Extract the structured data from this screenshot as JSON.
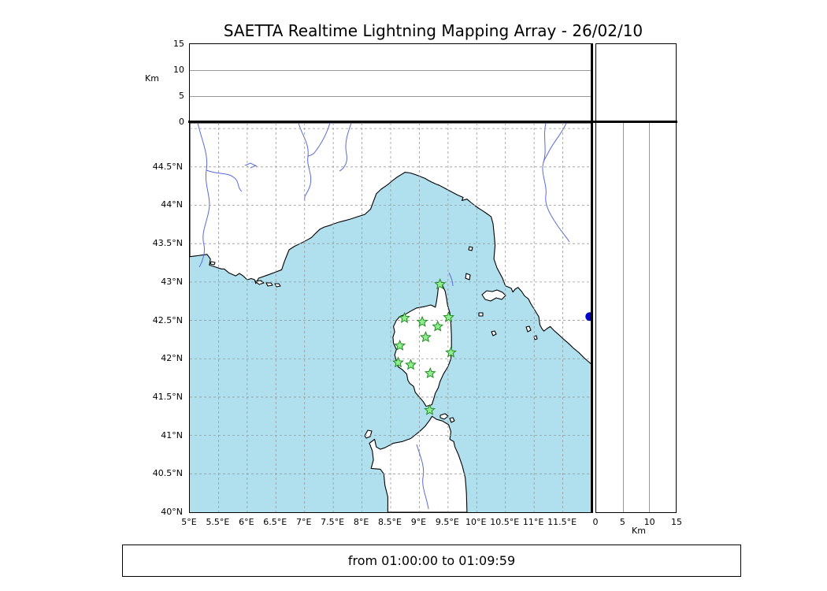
{
  "title": "SAETTA Realtime Lightning Mapping Array - 26/02/10",
  "footer": {
    "text": "from 01:00:00 to 01:09:59"
  },
  "panels": {
    "altitude_top": {
      "axis_label": "Km",
      "tick_labels": [
        "15",
        "10",
        "5",
        "0"
      ],
      "range": [
        0,
        15
      ],
      "gridlines": [
        5,
        10
      ]
    },
    "altitude_right": {
      "axis_label": "Km",
      "tick_labels": [
        "0",
        "5",
        "10",
        "15"
      ],
      "range": [
        0,
        15
      ],
      "gridlines": [
        5,
        10
      ]
    }
  },
  "map": {
    "lon_tick_labels": [
      "5°E",
      "5.5°E",
      "6°E",
      "6.5°E",
      "7°E",
      "7.5°E",
      "8°E",
      "8.5°E",
      "9°E",
      "9.5°E",
      "10°E",
      "10.5°E",
      "11°E",
      "11.5°E"
    ],
    "lat_tick_labels": [
      "44.5°N",
      "44°N",
      "43.5°N",
      "43°N",
      "42.5°N",
      "42°N",
      "41.5°N",
      "41°N",
      "40.5°N",
      "40°N"
    ]
  },
  "chart_data": {
    "type": "scatter",
    "title": "SAETTA Realtime Lightning Mapping Array - 26/02/10",
    "time_window": "from 01:00:00 to 01:09:59",
    "geo_extent": {
      "lon": [
        5,
        12
      ],
      "lat": [
        40,
        45.07
      ]
    },
    "lon_gridlines": [
      5.5,
      6,
      6.5,
      7,
      7.5,
      8,
      8.5,
      9,
      9.5,
      10,
      10.5,
      11,
      11.5
    ],
    "lat_gridlines": [
      40.5,
      41,
      41.5,
      42,
      42.5,
      43,
      43.5,
      44,
      44.5,
      45
    ],
    "altitude_km": {
      "range": [
        0,
        15
      ],
      "gridlines": [
        5,
        10
      ]
    },
    "series": [
      {
        "name": "saetta-stations",
        "marker": "star",
        "points_lon_lat": [
          [
            9.36,
            42.97
          ],
          [
            8.74,
            42.53
          ],
          [
            9.05,
            42.48
          ],
          [
            9.51,
            42.54
          ],
          [
            9.32,
            42.42
          ],
          [
            9.11,
            42.28
          ],
          [
            8.66,
            42.17
          ],
          [
            9.55,
            42.08
          ],
          [
            8.63,
            41.95
          ],
          [
            8.85,
            41.92
          ],
          [
            9.19,
            41.81
          ],
          [
            9.18,
            41.33
          ]
        ]
      },
      {
        "name": "blue-dot",
        "marker": "circle",
        "points_lon_lat": [
          [
            11.97,
            42.55
          ]
        ]
      }
    ]
  },
  "colors": {
    "sea": "#b0e0ee",
    "land": "#ffffff",
    "coast": "#000000",
    "river": "#5a6bd8",
    "grid_map": "#999999",
    "grid_panel": "#999999",
    "station_fill": "#90ee90",
    "station_edge": "#228b22",
    "blue_dot": "#0000cd",
    "frame": "#000000"
  }
}
